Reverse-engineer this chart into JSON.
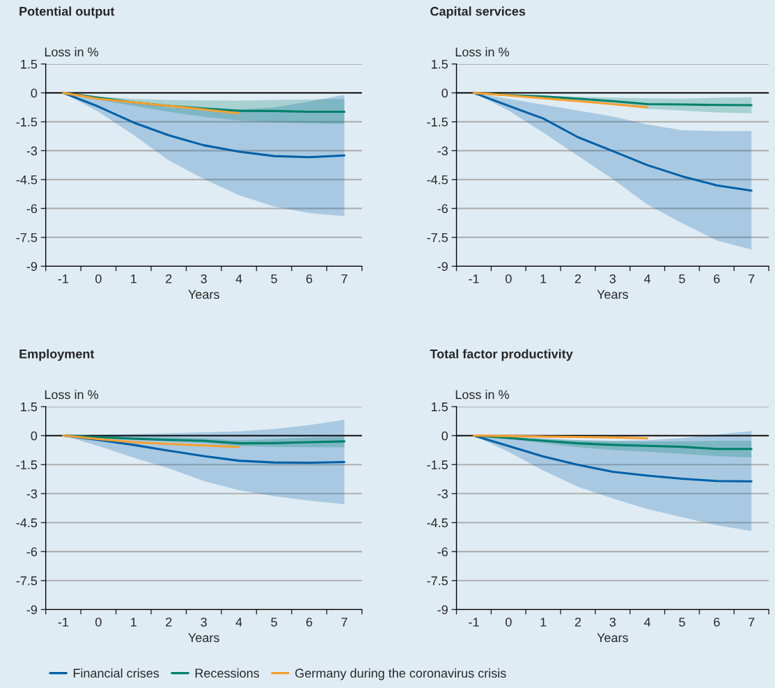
{
  "chart_data": [
    {
      "type": "line",
      "title": "Potential output",
      "ylabel": "Loss in %",
      "xlabel": "Years",
      "categories": [
        "-1",
        "0",
        "1",
        "2",
        "3",
        "4",
        "5",
        "6",
        "7"
      ],
      "ylim": [
        -9,
        1.5
      ],
      "yticks": [
        1.5,
        0,
        -1.5,
        -3,
        -4.5,
        -6,
        -7.5,
        -9
      ],
      "grid": "y",
      "legend": "bottom",
      "ref_lines": [
        {
          "axis": "y",
          "value": 0,
          "color": "#000000"
        }
      ],
      "series": [
        {
          "name": "Financial crises",
          "color": "#0060a8",
          "values": [
            0,
            -0.71,
            -1.54,
            -2.2,
            -2.72,
            -3.05,
            -3.28,
            -3.34,
            -3.25
          ],
          "lower": [
            0,
            -0.98,
            -2.18,
            -3.5,
            -4.47,
            -5.31,
            -5.9,
            -6.24,
            -6.4
          ],
          "upper": [
            0,
            -0.2,
            -0.45,
            -0.75,
            -0.85,
            -0.85,
            -0.75,
            -0.45,
            -0.1
          ]
        },
        {
          "name": "Recessions",
          "color": "#00806a",
          "values": [
            0,
            -0.25,
            -0.49,
            -0.67,
            -0.81,
            -0.93,
            -0.94,
            -0.98,
            -0.98
          ],
          "lower": [
            0,
            -0.37,
            -0.67,
            -0.98,
            -1.24,
            -1.43,
            -1.52,
            -1.58,
            -1.61
          ],
          "upper": [
            0,
            -0.19,
            -0.31,
            -0.37,
            -0.39,
            -0.4,
            -0.37,
            -0.35,
            -0.31
          ]
        },
        {
          "name": "Germany during the coronavirus crisis",
          "color": "#f7a030",
          "values": [
            0,
            -0.31,
            -0.49,
            -0.67,
            -0.86,
            -1.06,
            null,
            null,
            null
          ]
        }
      ]
    },
    {
      "type": "line",
      "title": "Capital services",
      "ylabel": "Loss in %",
      "xlabel": "Years",
      "categories": [
        "-1",
        "0",
        "1",
        "2",
        "3",
        "4",
        "5",
        "6",
        "7"
      ],
      "ylim": [
        -9,
        1.5
      ],
      "yticks": [
        1.5,
        0,
        -1.5,
        -3,
        -4.5,
        -6,
        -7.5,
        -9
      ],
      "grid": "y",
      "ref_lines": [
        {
          "axis": "y",
          "value": 0,
          "color": "#000000"
        }
      ],
      "series": [
        {
          "color": "#0060a8",
          "values": [
            0,
            -0.67,
            -1.33,
            -2.3,
            -3.02,
            -3.75,
            -4.33,
            -4.8,
            -5.07
          ],
          "lower": [
            0,
            -0.92,
            -2.06,
            -3.27,
            -4.47,
            -5.8,
            -6.76,
            -7.66,
            -8.14
          ],
          "upper": [
            0,
            -0.31,
            -0.61,
            -0.92,
            -1.22,
            -1.64,
            -1.94,
            -1.98,
            -1.98
          ]
        },
        {
          "color": "#00806a",
          "values": [
            0,
            -0.11,
            -0.19,
            -0.3,
            -0.43,
            -0.58,
            -0.6,
            -0.63,
            -0.64
          ],
          "lower": [
            0,
            -0.16,
            -0.29,
            -0.43,
            -0.61,
            -0.83,
            -0.92,
            -1.02,
            -1.06
          ],
          "upper": [
            0,
            -0.08,
            -0.15,
            -0.2,
            -0.25,
            -0.28,
            -0.3,
            -0.26,
            -0.23
          ]
        },
        {
          "color": "#f7a030",
          "values": [
            0,
            -0.13,
            -0.28,
            -0.43,
            -0.58,
            -0.75,
            null,
            null,
            null
          ]
        }
      ]
    },
    {
      "type": "line",
      "title": "Employment",
      "ylabel": "Loss in %",
      "xlabel": "Years",
      "categories": [
        "-1",
        "0",
        "1",
        "2",
        "3",
        "4",
        "5",
        "6",
        "7"
      ],
      "ylim": [
        -9,
        1.5
      ],
      "yticks": [
        1.5,
        0,
        -1.5,
        -3,
        -4.5,
        -6,
        -7.5,
        -9
      ],
      "grid": "y",
      "ref_lines": [
        {
          "axis": "y",
          "value": 0,
          "color": "#000000"
        }
      ],
      "series": [
        {
          "color": "#0060a8",
          "values": [
            0,
            -0.22,
            -0.48,
            -0.78,
            -1.06,
            -1.3,
            -1.39,
            -1.4,
            -1.37
          ],
          "lower": [
            0,
            -0.54,
            -1.14,
            -1.69,
            -2.35,
            -2.83,
            -3.13,
            -3.37,
            -3.55
          ],
          "upper": [
            0,
            0.05,
            0.08,
            0.12,
            0.17,
            0.22,
            0.34,
            0.54,
            0.82
          ]
        },
        {
          "color": "#00806a",
          "values": [
            0,
            -0.08,
            -0.16,
            -0.22,
            -0.27,
            -0.4,
            -0.39,
            -0.34,
            -0.3
          ],
          "lower": [
            0,
            -0.12,
            -0.22,
            -0.3,
            -0.39,
            -0.54,
            -0.58,
            -0.6,
            -0.6
          ],
          "upper": [
            0,
            -0.02,
            -0.06,
            -0.1,
            -0.14,
            -0.24,
            -0.18,
            -0.1,
            -0.06
          ]
        },
        {
          "color": "#f7a030",
          "values": [
            0,
            -0.18,
            -0.34,
            -0.43,
            -0.51,
            -0.59,
            null,
            null,
            null
          ]
        }
      ]
    },
    {
      "type": "line",
      "title": "Total factor productivity",
      "ylabel": "Loss in %",
      "xlabel": "Years",
      "categories": [
        "-1",
        "0",
        "1",
        "2",
        "3",
        "4",
        "5",
        "6",
        "7"
      ],
      "ylim": [
        -9,
        1.5
      ],
      "yticks": [
        1.5,
        0,
        -1.5,
        -3,
        -4.5,
        -6,
        -7.5,
        -9
      ],
      "grid": "y",
      "ref_lines": [
        {
          "axis": "y",
          "value": 0,
          "color": "#000000"
        }
      ],
      "series": [
        {
          "color": "#0060a8",
          "values": [
            0,
            -0.54,
            -1.08,
            -1.51,
            -1.87,
            -2.07,
            -2.23,
            -2.35,
            -2.37
          ],
          "lower": [
            0,
            -0.84,
            -1.81,
            -2.65,
            -3.25,
            -3.8,
            -4.22,
            -4.64,
            -4.94
          ],
          "upper": [
            0,
            -0.08,
            -0.18,
            -0.24,
            -0.27,
            -0.24,
            -0.12,
            0.06,
            0.24
          ]
        },
        {
          "color": "#00806a",
          "values": [
            0,
            -0.12,
            -0.27,
            -0.4,
            -0.48,
            -0.53,
            -0.58,
            -0.69,
            -0.69
          ],
          "lower": [
            0,
            -0.18,
            -0.39,
            -0.6,
            -0.75,
            -0.84,
            -0.94,
            -1.06,
            -1.12
          ],
          "upper": [
            0,
            -0.06,
            -0.14,
            -0.24,
            -0.3,
            -0.31,
            -0.3,
            -0.27,
            -0.27
          ]
        },
        {
          "color": "#f7a030",
          "values": [
            0,
            -0.02,
            -0.05,
            -0.07,
            -0.1,
            -0.14,
            null,
            null,
            null
          ]
        }
      ]
    }
  ]
}
